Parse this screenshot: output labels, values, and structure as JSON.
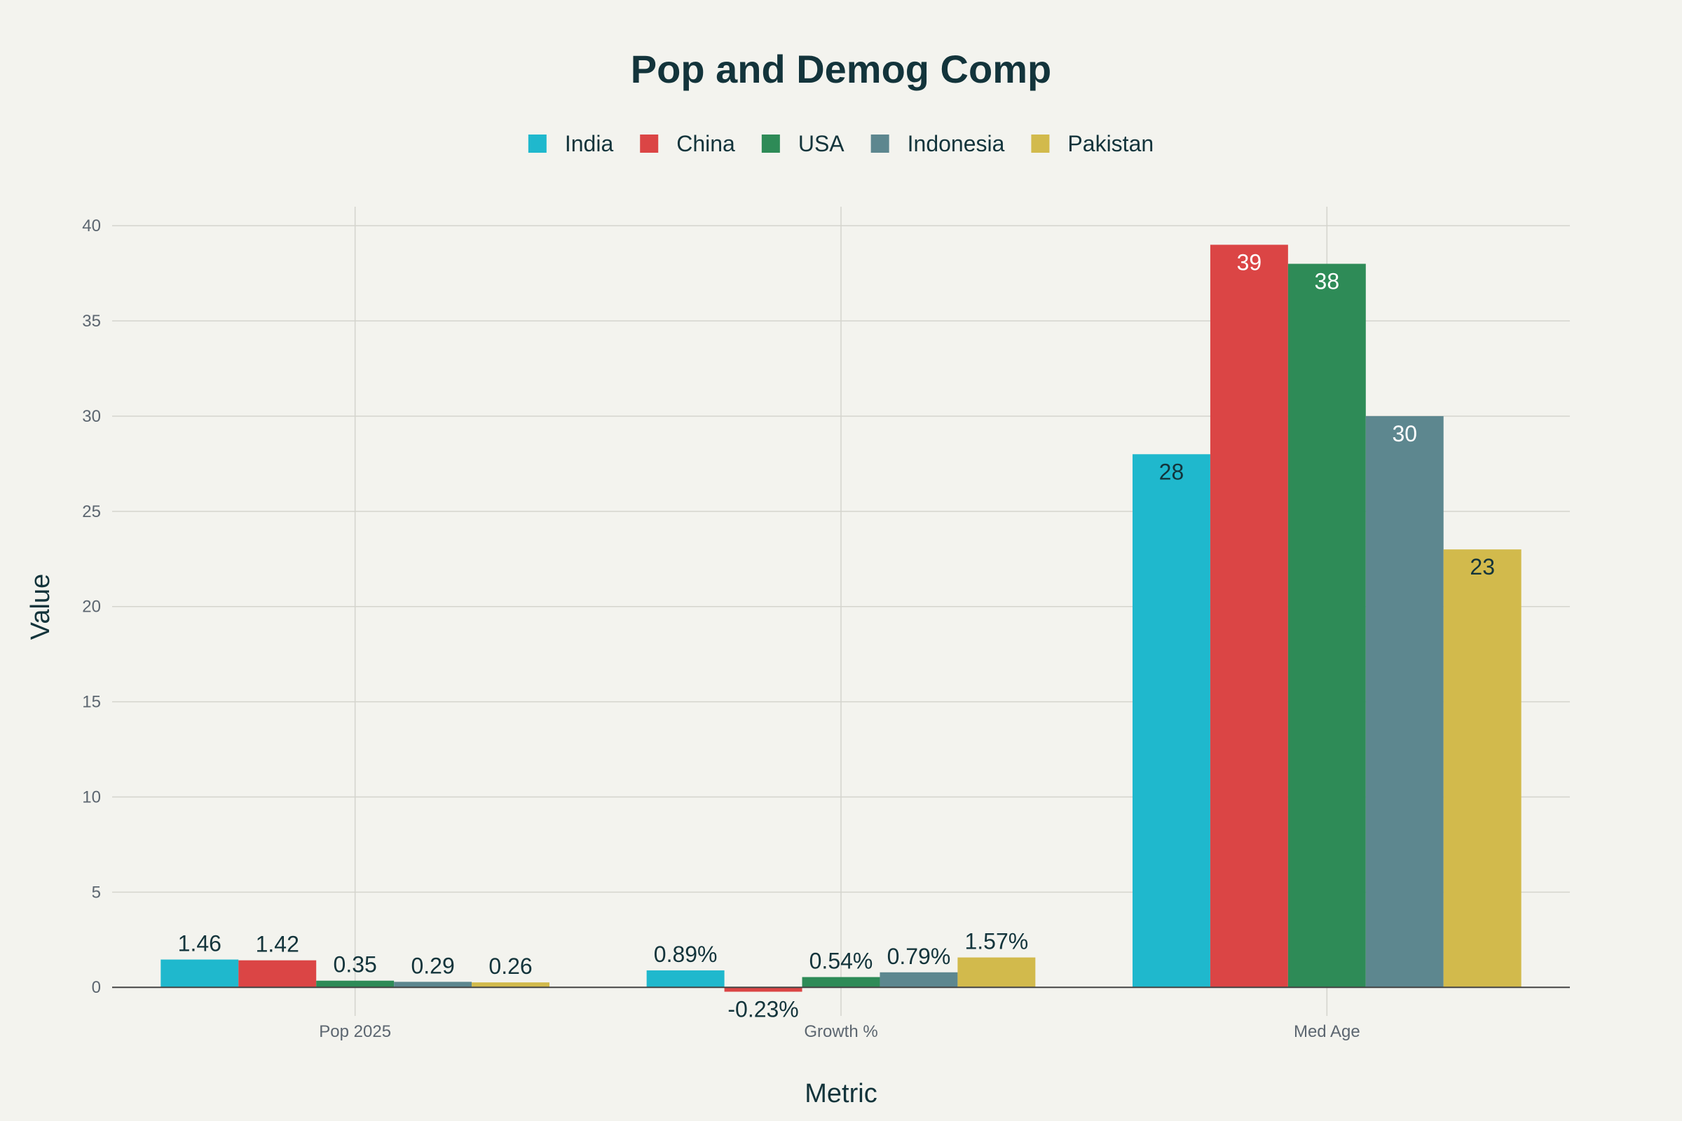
{
  "chart_data": {
    "type": "bar",
    "title": "Pop and Demog Comp",
    "xlabel": "Metric",
    "ylabel": "Value",
    "categories": [
      "Pop 2025",
      "Growth %",
      "Med Age"
    ],
    "ylim": [
      -1.5,
      41
    ],
    "yticks": [
      0,
      5,
      10,
      15,
      20,
      25,
      30,
      35,
      40
    ],
    "grid": true,
    "legend_position": "top-center",
    "series": [
      {
        "name": "India",
        "color": "#1fb8cd",
        "values": [
          1.46,
          0.89,
          28
        ],
        "labels": [
          "1.46",
          "0.89%",
          "28"
        ]
      },
      {
        "name": "China",
        "color": "#db4545",
        "values": [
          1.42,
          -0.23,
          39
        ],
        "labels": [
          "1.42",
          "-0.23%",
          "39"
        ]
      },
      {
        "name": "USA",
        "color": "#2e8b57",
        "values": [
          0.35,
          0.54,
          38
        ],
        "labels": [
          "0.35",
          "0.54%",
          "38"
        ]
      },
      {
        "name": "Indonesia",
        "color": "#5d878f",
        "values": [
          0.29,
          0.79,
          30
        ],
        "labels": [
          "0.29",
          "0.79%",
          "30"
        ]
      },
      {
        "name": "Pakistan",
        "color": "#d2ba4c",
        "values": [
          0.26,
          1.57,
          23
        ],
        "labels": [
          "0.26",
          "1.57%",
          "23"
        ]
      }
    ]
  }
}
